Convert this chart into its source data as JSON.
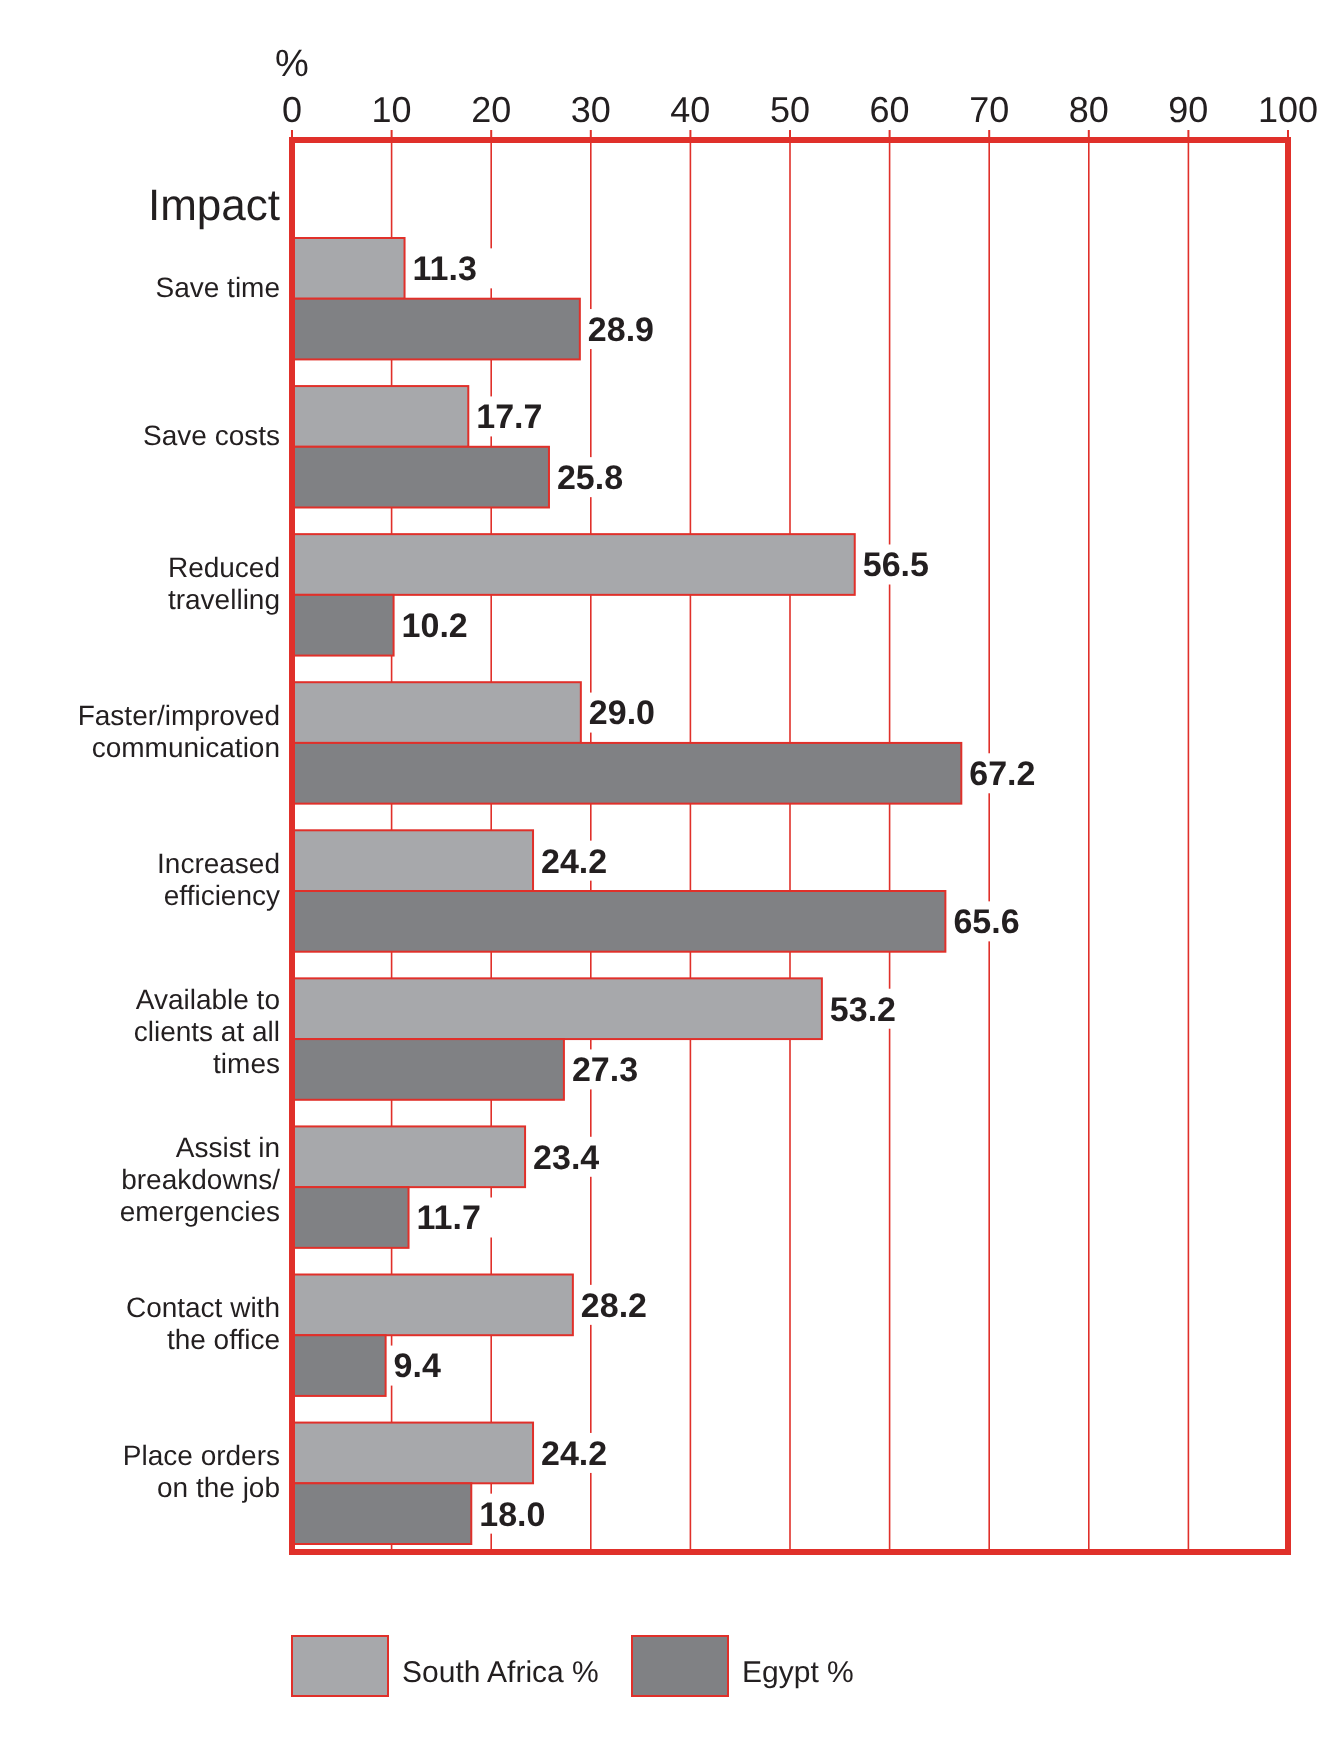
{
  "chart_data": {
    "type": "bar",
    "orientation": "horizontal",
    "xlabel": "%",
    "ylabel": "Impact",
    "categories": [
      "Save time",
      "Save costs",
      "Reduced travelling",
      "Faster/improved communication",
      "Increased efficiency",
      "Available to clients at all times",
      "Assist in breakdowns/ emergencies",
      "Contact with the office",
      "Place orders on the job"
    ],
    "series": [
      {
        "name": "South Africa %",
        "color": "#a7a8ab",
        "values": [
          11.3,
          17.7,
          56.5,
          29.0,
          24.2,
          53.2,
          23.4,
          28.2,
          24.2
        ],
        "value_labels": [
          "11.3",
          "17.7",
          "56.5",
          "29.0",
          "24.2",
          "53.2",
          "23.4",
          "28.2",
          "24.2"
        ]
      },
      {
        "name": "Egypt %",
        "color": "#808184",
        "values": [
          28.9,
          25.8,
          10.2,
          67.2,
          65.6,
          27.3,
          11.7,
          9.4,
          18.0
        ],
        "value_labels": [
          "28.9",
          "25.8",
          "10.2",
          "67.2",
          "65.6",
          "27.3",
          "11.7",
          "9.4",
          "18.0"
        ]
      }
    ],
    "xlim": [
      0,
      100
    ],
    "xticks": [
      0,
      10,
      20,
      30,
      40,
      50,
      60,
      70,
      80,
      90,
      100
    ],
    "grid": "x",
    "legend": "bottom"
  }
}
